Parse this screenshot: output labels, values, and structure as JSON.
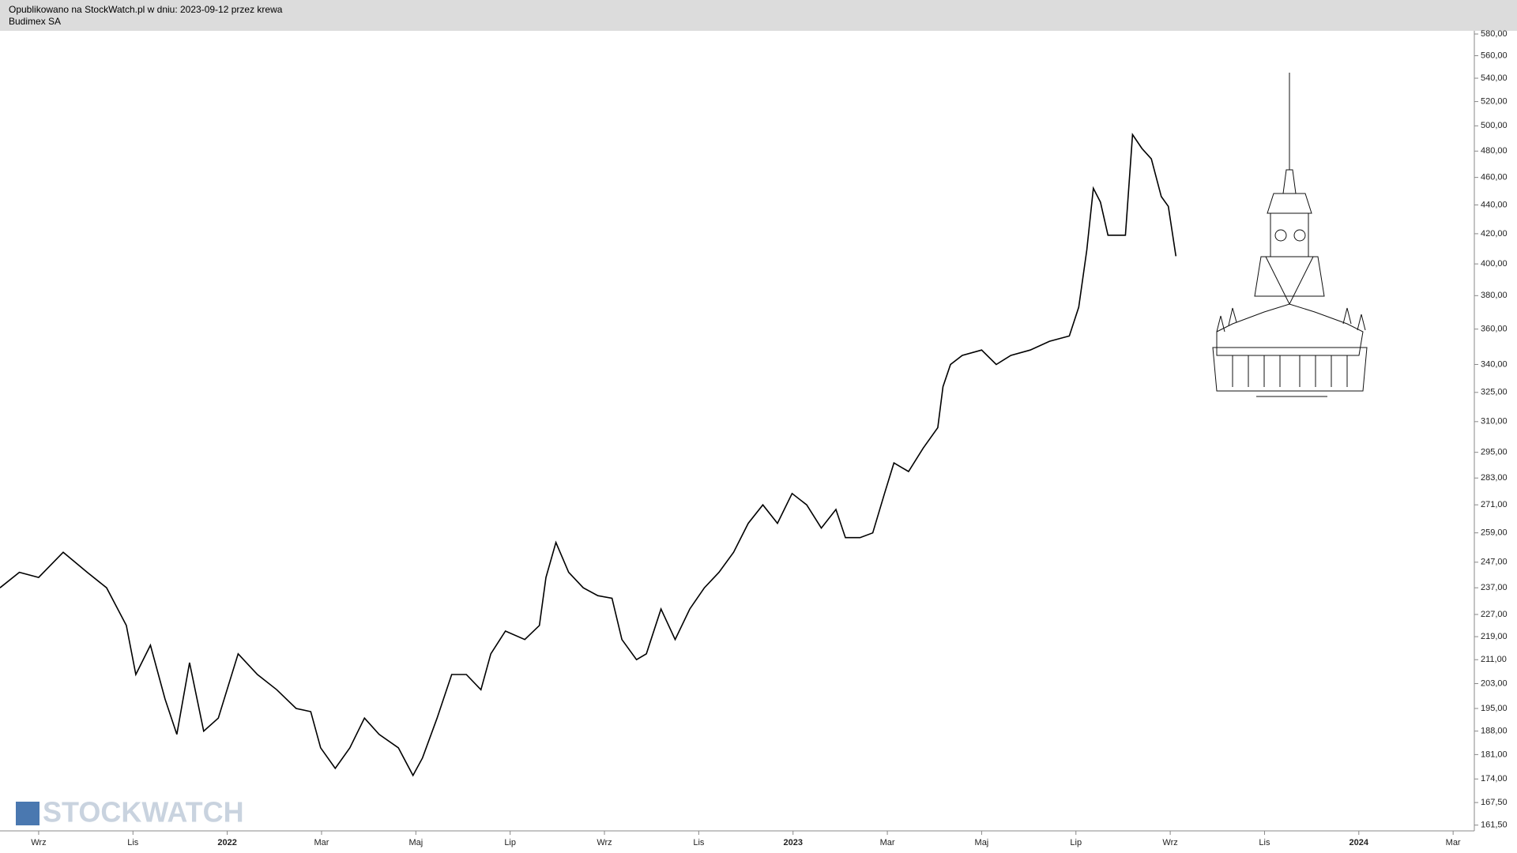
{
  "header": {
    "published": "Opublikowano na StockWatch.pl w dniu: 2023-09-12 przez krewa",
    "instrument": "Budimex SA"
  },
  "watermark": "STOCKWATCH",
  "chart_data": {
    "type": "line",
    "log_scale": true,
    "color": "#000000",
    "x": [
      -0.82,
      -0.41,
      0,
      0.52,
      1.03,
      1.44,
      1.86,
      2.06,
      2.37,
      2.68,
      2.93,
      3.2,
      3.5,
      3.81,
      4.23,
      4.64,
      5.05,
      5.46,
      5.77,
      5.98,
      6.29,
      6.6,
      6.91,
      7.22,
      7.63,
      7.94,
      8.14,
      8.45,
      8.76,
      9.07,
      9.38,
      9.59,
      9.9,
      10.31,
      10.62,
      10.76,
      10.97,
      11.24,
      11.55,
      11.86,
      12.16,
      12.37,
      12.68,
      12.89,
      13.2,
      13.5,
      13.81,
      14.12,
      14.43,
      14.74,
      15.05,
      15.36,
      15.67,
      15.98,
      16.29,
      16.6,
      16.91,
      17.11,
      17.42,
      17.69,
      17.94,
      18.14,
      18.45,
      18.76,
      19.07,
      19.18,
      19.34,
      19.59,
      20.0,
      20.31,
      20.62,
      21.03,
      21.44,
      21.86,
      22.06,
      22.23,
      22.37,
      22.52,
      22.68,
      22.89,
      23.05,
      23.2,
      23.4,
      23.6,
      23.81,
      23.96,
      24.12
    ],
    "series": [
      {
        "name": "Budimex SA",
        "values": [
          237,
          243,
          241,
          251,
          243,
          237,
          223,
          206,
          216,
          198,
          187,
          210,
          188,
          192,
          213,
          206,
          201,
          195,
          194,
          183,
          177,
          183,
          192,
          187,
          183,
          175,
          180,
          192,
          206,
          206,
          201,
          213,
          221,
          218,
          223,
          241,
          255,
          243,
          237,
          234,
          233,
          218,
          211,
          213,
          229,
          218,
          229,
          237,
          243,
          251,
          263,
          271,
          263,
          276,
          271,
          261,
          269,
          257,
          257,
          259,
          276,
          290,
          286,
          297,
          307,
          328,
          340,
          345,
          348,
          340,
          345,
          348,
          353,
          356,
          373,
          409,
          452,
          442,
          419,
          419,
          419,
          493,
          482,
          474,
          446,
          439,
          405
        ]
      }
    ],
    "xlim": [
      -0.82,
      30.45
    ],
    "xticks": [
      {
        "value": 0,
        "label": "Wrz"
      },
      {
        "value": 2,
        "label": "Lis"
      },
      {
        "value": 4,
        "label": "2022"
      },
      {
        "value": 6,
        "label": "Mar"
      },
      {
        "value": 8,
        "label": "Maj"
      },
      {
        "value": 10,
        "label": "Lip"
      },
      {
        "value": 12,
        "label": "Wrz"
      },
      {
        "value": 14,
        "label": "Lis"
      },
      {
        "value": 16,
        "label": "2023"
      },
      {
        "value": 18,
        "label": "Mar"
      },
      {
        "value": 20,
        "label": "Maj"
      },
      {
        "value": 22,
        "label": "Lip"
      },
      {
        "value": 24,
        "label": "Wrz"
      },
      {
        "value": 26,
        "label": "Lis"
      },
      {
        "value": 28,
        "label": "2024"
      },
      {
        "value": 30,
        "label": "Mar"
      }
    ],
    "ylim": [
      160,
      583
    ],
    "yticks": [
      {
        "value": 580,
        "label": "580,00"
      },
      {
        "value": 560,
        "label": "560,00"
      },
      {
        "value": 540,
        "label": "540,00"
      },
      {
        "value": 520,
        "label": "520,00"
      },
      {
        "value": 500,
        "label": "500,00"
      },
      {
        "value": 480,
        "label": "480,00"
      },
      {
        "value": 460,
        "label": "460,00"
      },
      {
        "value": 440,
        "label": "440,00"
      },
      {
        "value": 420,
        "label": "420,00"
      },
      {
        "value": 400,
        "label": "400,00"
      },
      {
        "value": 380,
        "label": "380,00"
      },
      {
        "value": 360,
        "label": "360,00"
      },
      {
        "value": 340,
        "label": "340,00"
      },
      {
        "value": 325,
        "label": "325,00"
      },
      {
        "value": 310,
        "label": "310,00"
      },
      {
        "value": 295,
        "label": "295,00"
      },
      {
        "value": 283,
        "label": "283,00"
      },
      {
        "value": 271,
        "label": "271,00"
      },
      {
        "value": 259,
        "label": "259,00"
      },
      {
        "value": 247,
        "label": "247,00"
      },
      {
        "value": 237,
        "label": "237,00"
      },
      {
        "value": 227,
        "label": "227,00"
      },
      {
        "value": 219,
        "label": "219,00"
      },
      {
        "value": 211,
        "label": "211,00"
      },
      {
        "value": 203,
        "label": "203,00"
      },
      {
        "value": 195,
        "label": "195,00"
      },
      {
        "value": 188,
        "label": "188,00"
      },
      {
        "value": 181,
        "label": "181,00"
      },
      {
        "value": 174,
        "label": "174,00"
      },
      {
        "value": 167.5,
        "label": "167,50"
      },
      {
        "value": 161.5,
        "label": "161,50"
      }
    ]
  }
}
